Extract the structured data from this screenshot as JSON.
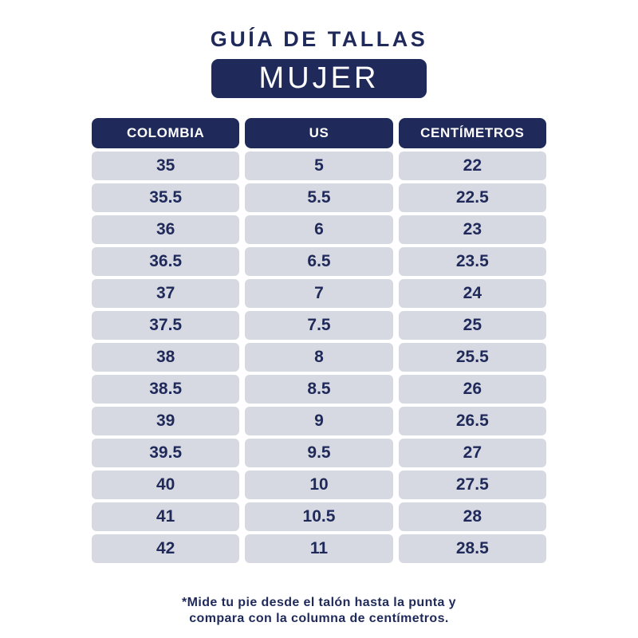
{
  "header": {
    "title": "GUÍA DE TALLAS",
    "badge": "MUJER"
  },
  "table": {
    "columns": [
      "COLOMBIA",
      "US",
      "CENTÍMETROS"
    ],
    "rows": [
      [
        "35",
        "5",
        "22"
      ],
      [
        "35.5",
        "5.5",
        "22.5"
      ],
      [
        "36",
        "6",
        "23"
      ],
      [
        "36.5",
        "6.5",
        "23.5"
      ],
      [
        "37",
        "7",
        "24"
      ],
      [
        "37.5",
        "7.5",
        "25"
      ],
      [
        "38",
        "8",
        "25.5"
      ],
      [
        "38.5",
        "8.5",
        "26"
      ],
      [
        "39",
        "9",
        "26.5"
      ],
      [
        "39.5",
        "9.5",
        "27"
      ],
      [
        "40",
        "10",
        "27.5"
      ],
      [
        "41",
        "10.5",
        "28"
      ],
      [
        "42",
        "11",
        "28.5"
      ]
    ]
  },
  "footnote": {
    "line1": "*Mide tu pie desde el talón hasta la punta y",
    "line2": "compara con la columna de centímetros."
  },
  "colors": {
    "navy": "#1f2a5a",
    "cell_gray": "#d7d9e2",
    "background": "#ffffff"
  }
}
